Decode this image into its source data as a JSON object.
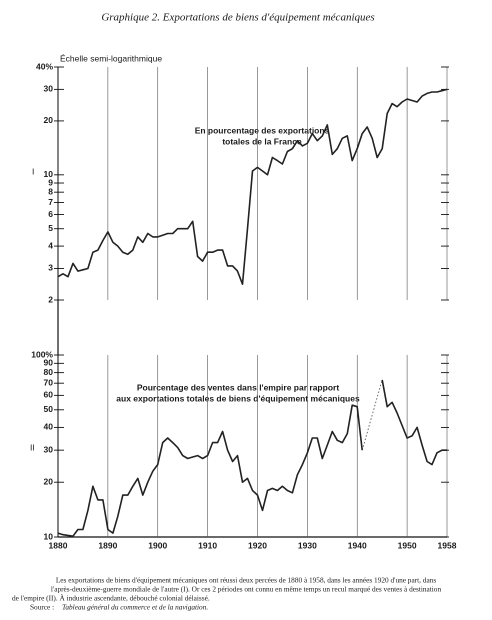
{
  "chart_data": [
    {
      "type": "line",
      "title": "Graphique 2. Exportations de biens d'équipement mécaniques",
      "y_label": "Échelle semi-logarithmique",
      "panel_label": "I",
      "annotation": [
        "En pourcentage des exportations",
        "totales de la France"
      ],
      "log_scale": true,
      "ylim": [
        2,
        40
      ],
      "yticks": [
        {
          "value": 40,
          "label": "40%"
        },
        30,
        20,
        10,
        9,
        8,
        7,
        6,
        5,
        4,
        3,
        2
      ],
      "x": [
        1880,
        1881,
        1882,
        1883,
        1884,
        1885,
        1886,
        1887,
        1888,
        1889,
        1890,
        1891,
        1892,
        1893,
        1894,
        1895,
        1896,
        1897,
        1898,
        1899,
        1900,
        1901,
        1902,
        1903,
        1904,
        1905,
        1906,
        1907,
        1908,
        1909,
        1910,
        1911,
        1912,
        1913,
        1914,
        1915,
        1916,
        1917,
        1918,
        1919,
        1920,
        1921,
        1922,
        1923,
        1924,
        1925,
        1926,
        1927,
        1928,
        1929,
        1930,
        1931,
        1932,
        1933,
        1934,
        1935,
        1936,
        1937,
        1938,
        1939,
        1940,
        1941,
        1942,
        1943,
        1944,
        1945,
        1946,
        1947,
        1948,
        1949,
        1950,
        1951,
        1952,
        1953,
        1954,
        1955,
        1956,
        1957,
        1958
      ],
      "color": "#222222",
      "values": [
        2.7,
        2.8,
        2.7,
        3.2,
        2.9,
        2.95,
        3.0,
        3.7,
        3.8,
        4.3,
        4.8,
        4.2,
        4.0,
        3.7,
        3.6,
        3.8,
        4.5,
        4.2,
        4.7,
        4.5,
        4.5,
        4.6,
        4.7,
        4.7,
        5.0,
        5.0,
        5.0,
        5.5,
        3.5,
        3.3,
        3.7,
        3.7,
        3.8,
        3.8,
        3.1,
        3.1,
        2.9,
        2.45,
        5.0,
        10.5,
        11,
        10.5,
        10,
        12.5,
        12,
        11.5,
        13.5,
        14,
        15.5,
        14.5,
        15,
        17,
        15.5,
        16.5,
        19,
        13,
        14,
        16,
        16.5,
        12,
        14,
        17,
        18.5,
        16,
        12.5,
        14,
        22,
        25,
        24,
        25.5,
        26.5,
        26,
        25.5,
        27.5,
        28.5,
        29,
        29,
        29.5,
        30
      ]
    },
    {
      "type": "line",
      "panel_label": "II",
      "annotation": [
        "Pourcentage des ventes dans l'empire par rapport",
        "aux exportations totales de biens d'équipement mécaniques"
      ],
      "log_scale": true,
      "ylim": [
        10,
        100
      ],
      "yticks": [
        {
          "value": 100,
          "label": "100%"
        },
        90,
        80,
        70,
        60,
        50,
        40,
        30,
        20,
        10
      ],
      "xlim": [
        1880,
        1958
      ],
      "xticks": [
        1880,
        1890,
        1900,
        1910,
        1920,
        1930,
        1940,
        1950,
        1958
      ],
      "x": [
        1880,
        1881,
        1882,
        1883,
        1884,
        1885,
        1886,
        1887,
        1888,
        1889,
        1890,
        1891,
        1892,
        1893,
        1894,
        1895,
        1896,
        1897,
        1898,
        1899,
        1900,
        1901,
        1902,
        1903,
        1904,
        1905,
        1906,
        1907,
        1908,
        1909,
        1910,
        1911,
        1912,
        1913,
        1914,
        1915,
        1916,
        1917,
        1918,
        1919,
        1920,
        1921,
        1922,
        1923,
        1924,
        1925,
        1926,
        1927,
        1928,
        1929,
        1930,
        1931,
        1932,
        1933,
        1934,
        1935,
        1936,
        1937,
        1938,
        1939,
        1940,
        1941,
        1942,
        1943,
        1944,
        1945,
        1946,
        1947,
        1948,
        1949,
        1950,
        1951,
        1952,
        1953,
        1954,
        1955,
        1956,
        1957,
        1958
      ],
      "color": "#222222",
      "values": [
        10.5,
        10.3,
        10.2,
        10.1,
        11,
        11,
        14,
        19,
        16,
        16,
        11,
        10.5,
        13,
        17,
        17,
        19,
        21,
        17,
        20,
        23,
        25,
        33,
        35,
        33,
        31,
        28,
        27,
        27.5,
        28,
        27,
        28,
        33,
        33,
        38,
        30,
        26,
        28,
        20,
        21,
        18,
        17,
        14,
        18,
        18.5,
        18,
        19,
        18,
        17.5,
        22,
        25,
        29,
        35,
        35,
        27,
        32,
        38,
        34,
        33,
        37,
        53,
        52,
        30,
        null,
        null,
        null,
        73,
        52,
        55,
        48,
        41,
        35,
        36,
        40,
        32,
        26,
        25,
        29,
        30,
        30
      ]
    }
  ],
  "caption": {
    "lines": [
      "Les exportations de biens d'équipement mécaniques ont réussi deux percées de 1880 à 1958, dans les années 1920 d'une part, dans",
      "l'après-deuxième-guerre mondiale de l'autre (I). Or ces 2 périodes ont connu en même temps un recul marqué des ventes à destination",
      "de l'empire (II). À industrie ascendante, débouché colonial délaissé."
    ],
    "source_label": "Source :",
    "source": "Tableau général du commerce et de la navigation."
  }
}
